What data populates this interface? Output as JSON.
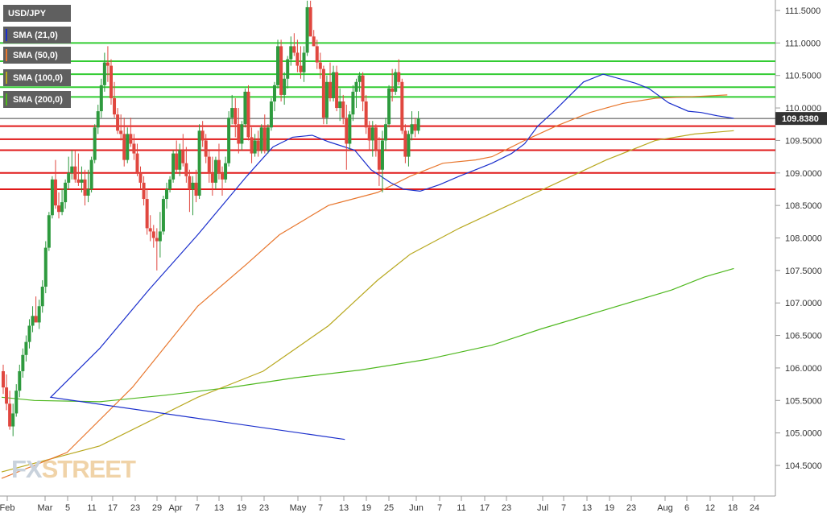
{
  "chart_data": {
    "type": "candlestick",
    "title": "USD/JPY",
    "indicators": [
      {
        "name": "SMA (21,0)",
        "color": "#1a2ecc"
      },
      {
        "name": "SMA (50,0)",
        "color": "#e8772e"
      },
      {
        "name": "SMA (100,0)",
        "color": "#b8a81f"
      },
      {
        "name": "SMA (200,0)",
        "color": "#4fb81f"
      }
    ],
    "ylim": [
      104.2,
      111.65
    ],
    "y_ticks": [
      "111.5000",
      "111.0000",
      "110.5000",
      "110.0000",
      "109.5000",
      "109.0000",
      "108.5000",
      "108.0000",
      "107.5000",
      "107.0000",
      "106.5000",
      "106.0000",
      "105.5000",
      "105.0000",
      "104.5000"
    ],
    "x_ticks": [
      "Feb",
      "Mar",
      "5",
      "11",
      "17",
      "23",
      "29",
      "Apr",
      "7",
      "13",
      "19",
      "23",
      "May",
      "7",
      "13",
      "19",
      "25",
      "Jun",
      "7",
      "11",
      "17",
      "23",
      "Jul",
      "7",
      "13",
      "19",
      "23",
      "Aug",
      "6",
      "12",
      "18",
      "24"
    ],
    "current_price": "109.8380",
    "horizontal_levels": {
      "green": [
        111.0,
        110.72,
        110.52,
        110.17,
        110.32
      ],
      "red": [
        109.72,
        109.52,
        109.35,
        109.0,
        108.75
      ]
    },
    "candles": [
      [
        105.95,
        106.05,
        105.6,
        105.7
      ],
      [
        105.7,
        105.9,
        105.35,
        105.45
      ],
      [
        105.45,
        105.65,
        105.05,
        105.1
      ],
      [
        105.1,
        105.45,
        104.95,
        105.3
      ],
      [
        105.3,
        105.75,
        105.25,
        105.65
      ],
      [
        105.65,
        106.05,
        105.55,
        105.95
      ],
      [
        105.95,
        106.3,
        105.85,
        106.2
      ],
      [
        106.2,
        106.5,
        106.1,
        106.4
      ],
      [
        106.4,
        106.75,
        106.3,
        106.65
      ],
      [
        106.65,
        106.95,
        106.55,
        106.8
      ],
      [
        106.8,
        107.1,
        106.7,
        106.7
      ],
      [
        106.7,
        107.05,
        106.6,
        106.95
      ],
      [
        106.95,
        107.35,
        106.85,
        107.25
      ],
      [
        107.25,
        107.95,
        107.15,
        107.85
      ],
      [
        107.85,
        108.4,
        107.8,
        108.35
      ],
      [
        108.35,
        108.95,
        108.3,
        108.9
      ],
      [
        108.9,
        109.2,
        108.45,
        108.5
      ],
      [
        108.5,
        108.7,
        108.3,
        108.4
      ],
      [
        108.4,
        108.75,
        108.35,
        108.55
      ],
      [
        108.55,
        108.9,
        108.45,
        108.85
      ],
      [
        108.85,
        109.25,
        108.75,
        109.0
      ],
      [
        109.0,
        109.35,
        108.9,
        109.1
      ],
      [
        109.1,
        109.35,
        108.85,
        108.9
      ],
      [
        108.9,
        109.3,
        108.8,
        108.85
      ],
      [
        108.85,
        109.1,
        108.7,
        108.9
      ],
      [
        108.9,
        109.05,
        108.5,
        108.65
      ],
      [
        108.65,
        109.05,
        108.55,
        108.75
      ],
      [
        108.75,
        109.25,
        108.7,
        109.2
      ],
      [
        109.2,
        109.75,
        109.15,
        109.7
      ],
      [
        109.7,
        110.05,
        109.6,
        109.95
      ],
      [
        109.95,
        110.45,
        109.85,
        110.35
      ],
      [
        110.35,
        110.85,
        110.25,
        110.7
      ],
      [
        110.7,
        110.95,
        110.4,
        110.65
      ],
      [
        110.65,
        110.75,
        110.05,
        110.15
      ],
      [
        110.15,
        110.4,
        109.85,
        109.9
      ],
      [
        109.9,
        110.0,
        109.6,
        109.65
      ],
      [
        109.65,
        109.9,
        109.5,
        109.6
      ],
      [
        109.6,
        109.85,
        109.1,
        109.2
      ],
      [
        109.2,
        109.7,
        109.15,
        109.6
      ],
      [
        109.6,
        109.85,
        109.4,
        109.45
      ],
      [
        109.45,
        109.6,
        109.2,
        109.3
      ],
      [
        109.3,
        109.45,
        108.95,
        109.0
      ],
      [
        109.0,
        109.1,
        108.75,
        108.85
      ],
      [
        108.85,
        108.95,
        108.5,
        108.6
      ],
      [
        108.6,
        108.75,
        108.05,
        108.15
      ],
      [
        108.15,
        108.35,
        107.95,
        108.1
      ],
      [
        108.1,
        108.2,
        107.85,
        108.0
      ],
      [
        108.0,
        108.15,
        107.5,
        107.95
      ],
      [
        107.95,
        108.4,
        107.7,
        108.1
      ],
      [
        108.1,
        108.65,
        108.05,
        108.6
      ],
      [
        108.6,
        108.85,
        108.45,
        108.75
      ],
      [
        108.75,
        108.95,
        108.7,
        108.9
      ],
      [
        108.9,
        109.35,
        108.85,
        109.3
      ],
      [
        109.3,
        109.5,
        109.0,
        109.05
      ],
      [
        109.05,
        109.45,
        108.95,
        109.35
      ],
      [
        109.35,
        109.6,
        109.1,
        109.15
      ],
      [
        109.15,
        109.4,
        108.85,
        108.95
      ],
      [
        108.95,
        109.05,
        108.4,
        108.75
      ],
      [
        108.75,
        108.95,
        108.35,
        108.85
      ],
      [
        108.85,
        109.05,
        108.55,
        108.65
      ],
      [
        108.65,
        109.75,
        108.6,
        109.65
      ],
      [
        109.65,
        109.8,
        109.4,
        109.5
      ],
      [
        109.5,
        109.6,
        109.15,
        109.25
      ],
      [
        109.25,
        109.35,
        108.85,
        109.0
      ],
      [
        109.0,
        109.25,
        108.65,
        108.85
      ],
      [
        108.85,
        109.25,
        108.75,
        109.2
      ],
      [
        109.2,
        109.45,
        108.9,
        109.0
      ],
      [
        109.0,
        109.1,
        108.65,
        108.9
      ],
      [
        108.9,
        109.25,
        108.85,
        109.15
      ],
      [
        109.15,
        109.95,
        109.1,
        109.85
      ],
      [
        109.85,
        110.2,
        109.75,
        110.0
      ],
      [
        110.0,
        110.15,
        109.55,
        109.75
      ],
      [
        109.75,
        110.0,
        109.3,
        109.45
      ],
      [
        109.45,
        109.8,
        109.35,
        109.75
      ],
      [
        109.75,
        110.3,
        109.7,
        110.25
      ],
      [
        110.25,
        110.35,
        109.5,
        109.55
      ],
      [
        109.55,
        109.7,
        109.15,
        109.3
      ],
      [
        109.3,
        109.6,
        109.25,
        109.5
      ],
      [
        109.5,
        109.65,
        109.25,
        109.35
      ],
      [
        109.35,
        109.75,
        109.3,
        109.7
      ],
      [
        109.7,
        109.9,
        109.3,
        109.35
      ],
      [
        109.35,
        109.75,
        109.3,
        109.7
      ],
      [
        109.7,
        110.15,
        109.65,
        110.1
      ],
      [
        110.1,
        110.4,
        109.95,
        110.35
      ],
      [
        110.35,
        111.05,
        110.3,
        110.95
      ],
      [
        110.95,
        111.05,
        110.1,
        110.2
      ],
      [
        110.2,
        110.55,
        110.05,
        110.45
      ],
      [
        110.45,
        110.8,
        110.3,
        110.75
      ],
      [
        110.75,
        111.1,
        110.65,
        110.95
      ],
      [
        110.95,
        111.15,
        110.8,
        110.85
      ],
      [
        110.85,
        111.05,
        110.55,
        110.65
      ],
      [
        110.65,
        110.95,
        110.45,
        110.55
      ],
      [
        110.55,
        110.95,
        110.4,
        110.85
      ],
      [
        110.85,
        111.65,
        110.8,
        111.55
      ],
      [
        111.55,
        111.65,
        111.1,
        111.1
      ],
      [
        111.1,
        111.2,
        110.95,
        110.95
      ],
      [
        110.95,
        111.05,
        110.6,
        110.7
      ],
      [
        110.7,
        110.85,
        110.45,
        110.6
      ],
      [
        110.6,
        110.65,
        109.75,
        109.85
      ],
      [
        109.85,
        110.5,
        109.75,
        110.4
      ],
      [
        110.4,
        110.7,
        110.1,
        110.15
      ],
      [
        110.15,
        110.65,
        110.1,
        110.55
      ],
      [
        110.55,
        110.65,
        109.95,
        110.0
      ],
      [
        110.0,
        110.3,
        109.8,
        110.1
      ],
      [
        110.1,
        110.2,
        109.75,
        109.85
      ],
      [
        109.85,
        110.05,
        109.05,
        109.45
      ],
      [
        109.45,
        109.95,
        109.35,
        109.9
      ],
      [
        109.9,
        110.35,
        109.8,
        110.25
      ],
      [
        110.25,
        110.45,
        110.0,
        110.4
      ],
      [
        110.4,
        110.55,
        110.25,
        110.5
      ],
      [
        110.5,
        110.55,
        109.95,
        110.1
      ],
      [
        110.1,
        110.2,
        109.6,
        109.7
      ],
      [
        109.7,
        109.8,
        109.35,
        109.5
      ],
      [
        109.5,
        109.8,
        109.25,
        109.7
      ],
      [
        109.7,
        109.75,
        109.25,
        109.35
      ],
      [
        109.35,
        109.55,
        108.8,
        109.05
      ],
      [
        109.05,
        109.65,
        108.7,
        109.5
      ],
      [
        109.5,
        109.85,
        109.35,
        109.75
      ],
      [
        109.75,
        110.35,
        109.7,
        110.3
      ],
      [
        110.3,
        110.6,
        110.1,
        110.25
      ],
      [
        110.25,
        110.6,
        110.2,
        110.55
      ],
      [
        110.55,
        110.75,
        110.35,
        110.4
      ],
      [
        110.4,
        110.45,
        109.6,
        109.65
      ],
      [
        109.65,
        109.75,
        109.15,
        109.25
      ],
      [
        109.25,
        109.65,
        109.1,
        109.6
      ],
      [
        109.6,
        109.95,
        109.5,
        109.75
      ],
      [
        109.75,
        109.85,
        109.55,
        109.65
      ],
      [
        109.65,
        109.95,
        109.6,
        109.84
      ]
    ],
    "sma21": [
      [
        105.0,
        104.9
      ],
      [
        15,
        105.55
      ],
      [
        30,
        106.3
      ],
      [
        45,
        107.2
      ],
      [
        60,
        108.05
      ],
      [
        75,
        108.95
      ],
      [
        83,
        109.4
      ],
      [
        89,
        109.55
      ],
      [
        95,
        109.58
      ],
      [
        100,
        109.48
      ],
      [
        108,
        109.35
      ],
      [
        113,
        109.05
      ],
      [
        119,
        108.85
      ],
      [
        123,
        108.75
      ],
      [
        128,
        108.72
      ],
      [
        134,
        108.82
      ],
      [
        140,
        108.95
      ],
      [
        145,
        109.05
      ],
      [
        150,
        109.15
      ],
      [
        156,
        109.3
      ],
      [
        160,
        109.45
      ],
      [
        164,
        109.72
      ],
      [
        169,
        109.95
      ],
      [
        174,
        110.2
      ],
      [
        178,
        110.4
      ],
      [
        184,
        110.52
      ],
      [
        189,
        110.45
      ],
      [
        194,
        110.38
      ],
      [
        198,
        110.3
      ],
      [
        204,
        110.08
      ],
      [
        210,
        109.95
      ],
      [
        214,
        109.93
      ],
      [
        219,
        109.88
      ],
      [
        224,
        109.84
      ]
    ],
    "sma50": [
      [
        0,
        104.3
      ],
      [
        20,
        104.7
      ],
      [
        40,
        105.7
      ],
      [
        60,
        106.95
      ],
      [
        75,
        107.6
      ],
      [
        85,
        108.05
      ],
      [
        100,
        108.5
      ],
      [
        115,
        108.7
      ],
      [
        125,
        108.95
      ],
      [
        135,
        109.15
      ],
      [
        145,
        109.2
      ],
      [
        150,
        109.25
      ],
      [
        160,
        109.5
      ],
      [
        170,
        109.73
      ],
      [
        180,
        109.93
      ],
      [
        190,
        110.07
      ],
      [
        200,
        110.15
      ],
      [
        210,
        110.17
      ],
      [
        222,
        110.2
      ]
    ],
    "sma100": [
      [
        0,
        104.4
      ],
      [
        30,
        104.8
      ],
      [
        60,
        105.55
      ],
      [
        80,
        105.95
      ],
      [
        100,
        106.65
      ],
      [
        115,
        107.35
      ],
      [
        125,
        107.75
      ],
      [
        140,
        108.15
      ],
      [
        155,
        108.5
      ],
      [
        170,
        108.85
      ],
      [
        185,
        109.2
      ],
      [
        200,
        109.5
      ],
      [
        212,
        109.6
      ],
      [
        224,
        109.65
      ]
    ],
    "sma200": [
      [
        0,
        105.55
      ],
      [
        10,
        105.5
      ],
      [
        30,
        105.48
      ],
      [
        50,
        105.58
      ],
      [
        70,
        105.7
      ],
      [
        90,
        105.85
      ],
      [
        110,
        105.97
      ],
      [
        130,
        106.13
      ],
      [
        150,
        106.35
      ],
      [
        165,
        106.6
      ],
      [
        185,
        106.9
      ],
      [
        205,
        107.2
      ],
      [
        215,
        107.4
      ],
      [
        224,
        107.53
      ]
    ]
  }
}
